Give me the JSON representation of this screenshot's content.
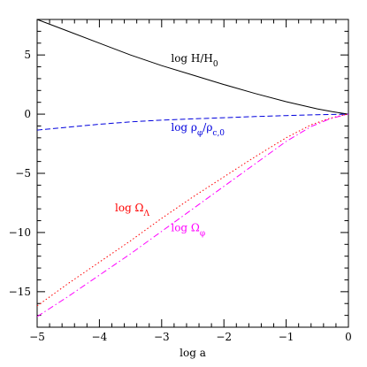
{
  "chart_data": {
    "type": "line",
    "title": "",
    "xlabel": "log a",
    "ylabel": "",
    "xlim": [
      -5,
      0
    ],
    "ylim": [
      -18,
      8
    ],
    "grid": false,
    "legend": "none",
    "x_ticks": [
      "−5",
      "−4",
      "−3",
      "−2",
      "−1",
      "0"
    ],
    "y_ticks": [
      "5",
      "0",
      "−5",
      "−10",
      "−15"
    ],
    "series": [
      {
        "key": "H",
        "color": "#000000",
        "style": "solid",
        "x": [
          -5,
          -4.5,
          -4,
          -3.5,
          -3,
          -2.5,
          -2,
          -1.5,
          -1,
          -0.5,
          -0.25,
          0
        ],
        "y": [
          8.0,
          7.0,
          6.0,
          5.0,
          4.1,
          3.3,
          2.5,
          1.75,
          1.05,
          0.45,
          0.2,
          0.0
        ]
      },
      {
        "key": "rho",
        "color": "#0000dd",
        "style": "dashed",
        "x": [
          -5,
          -4.5,
          -4,
          -3.5,
          -3,
          -2.5,
          -2,
          -1.5,
          -1,
          -0.5,
          0
        ],
        "y": [
          -1.35,
          -1.1,
          -0.85,
          -0.65,
          -0.5,
          -0.4,
          -0.3,
          -0.2,
          -0.12,
          -0.05,
          0.0
        ]
      },
      {
        "key": "omega_lambda",
        "color": "#ff0000",
        "style": "dotted",
        "x": [
          -5,
          -4.5,
          -4,
          -3.5,
          -3,
          -2.5,
          -2,
          -1.5,
          -1,
          -0.6,
          -0.3,
          -0.1,
          0
        ],
        "y": [
          -16.2,
          -14.3,
          -12.5,
          -10.7,
          -8.8,
          -7.0,
          -5.3,
          -3.6,
          -2.0,
          -0.9,
          -0.35,
          -0.1,
          0.0
        ]
      },
      {
        "key": "omega_phi",
        "color": "#ff00ff",
        "style": "dashdot",
        "x": [
          -5,
          -4.5,
          -4,
          -3.5,
          -3,
          -2.5,
          -2,
          -1.5,
          -1,
          -0.6,
          -0.3,
          -0.1,
          0
        ],
        "y": [
          -17.1,
          -15.4,
          -13.6,
          -11.8,
          -9.9,
          -8.0,
          -6.1,
          -4.2,
          -2.3,
          -1.05,
          -0.4,
          -0.12,
          0.0
        ]
      }
    ],
    "annotations": {
      "H": {
        "prefix": "log H/H",
        "sub": "0",
        "color": "#000000",
        "x": -2.85,
        "y": 4.4
      },
      "rho": {
        "prefix": "log ρ",
        "sub1": "φ",
        "mid": "/ρ",
        "sub2": "c,0",
        "color": "#0000dd",
        "x": -2.85,
        "y": -1.4
      },
      "omega_lambda": {
        "prefix": "log Ω",
        "sub": "Λ",
        "color": "#ff0000",
        "x": -3.75,
        "y": -8.2
      },
      "omega_phi": {
        "prefix": "log Ω",
        "sub": "φ",
        "color": "#ff00ff",
        "x": -2.85,
        "y": -9.9
      }
    }
  }
}
